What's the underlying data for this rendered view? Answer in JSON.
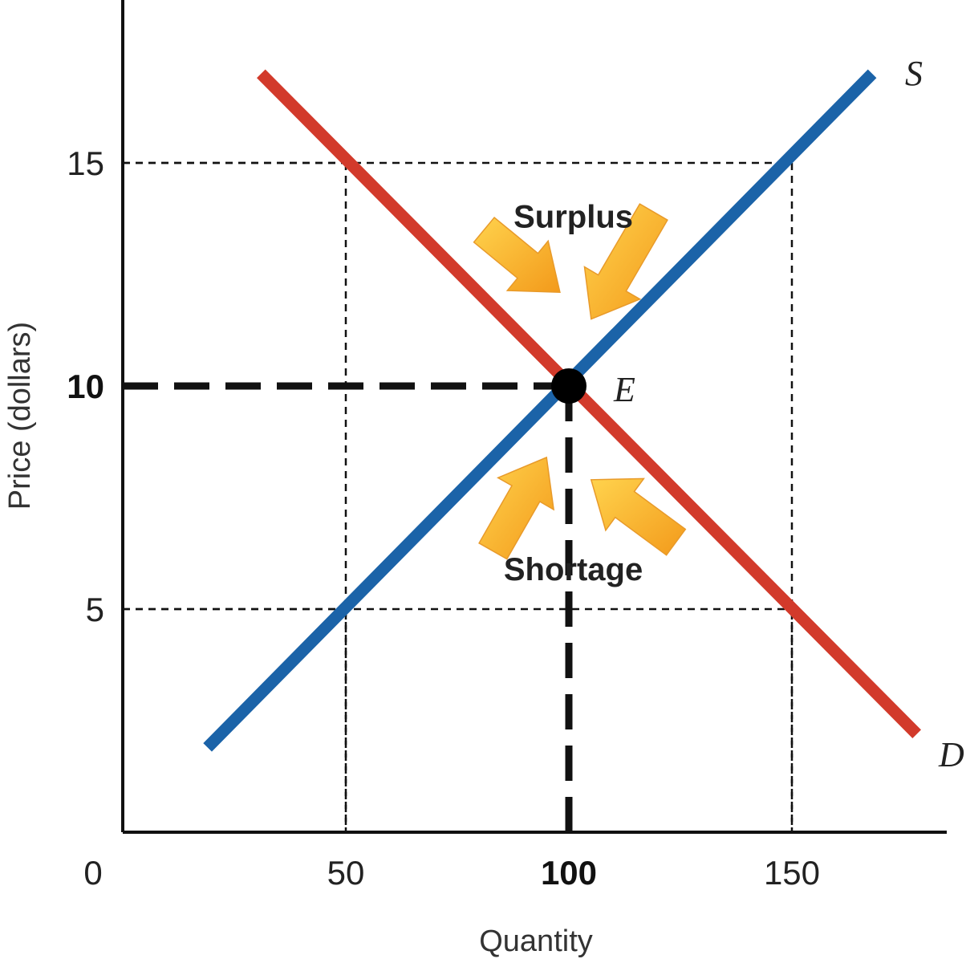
{
  "chart_data": {
    "type": "line",
    "xlabel": "Quantity",
    "ylabel": "Price (dollars)",
    "xlim": [
      0,
      180
    ],
    "ylim": [
      0,
      18.7
    ],
    "x_ticks": [
      {
        "value": 0,
        "label": "0",
        "bold": false
      },
      {
        "value": 50,
        "label": "50",
        "bold": false
      },
      {
        "value": 100,
        "label": "100",
        "bold": true
      },
      {
        "value": 150,
        "label": "150",
        "bold": false
      }
    ],
    "y_ticks": [
      {
        "value": 5,
        "label": "5",
        "bold": false
      },
      {
        "value": 10,
        "label": "10",
        "bold": true
      },
      {
        "value": 15,
        "label": "15",
        "bold": false
      }
    ],
    "series": [
      {
        "name": "S",
        "color": "#1b63a8",
        "points": [
          [
            19,
            1.9
          ],
          [
            168,
            17
          ]
        ]
      },
      {
        "name": "D",
        "color": "#d23a2b",
        "points": [
          [
            31,
            17
          ],
          [
            178,
            2.2
          ]
        ]
      }
    ],
    "equilibrium": {
      "label": "E",
      "x": 100,
      "y": 10
    },
    "guide_lines": [
      {
        "x": 50,
        "y": 15
      },
      {
        "x": 150,
        "y": 15
      },
      {
        "x": 50,
        "y": 5
      },
      {
        "x": 150,
        "y": 5
      }
    ],
    "annotations": [
      {
        "id": "surplus",
        "text": "Surplus",
        "x": 101,
        "y": 13.8
      },
      {
        "id": "shortage",
        "text": "Shortage",
        "x": 101,
        "y": 5.9
      }
    ],
    "arrows": [
      {
        "id": "surplus-left",
        "from": [
          81,
          13.5
        ],
        "to": [
          98,
          12.1
        ]
      },
      {
        "id": "surplus-right",
        "from": [
          119,
          13.9
        ],
        "to": [
          105,
          11.5
        ]
      },
      {
        "id": "shortage-left",
        "from": [
          83,
          6.3
        ],
        "to": [
          95,
          8.4
        ]
      },
      {
        "id": "shortage-right",
        "from": [
          124,
          6.5
        ],
        "to": [
          105,
          7.9
        ]
      }
    ],
    "arrow_colors": [
      "#ffd34d",
      "#f39a1b"
    ]
  }
}
